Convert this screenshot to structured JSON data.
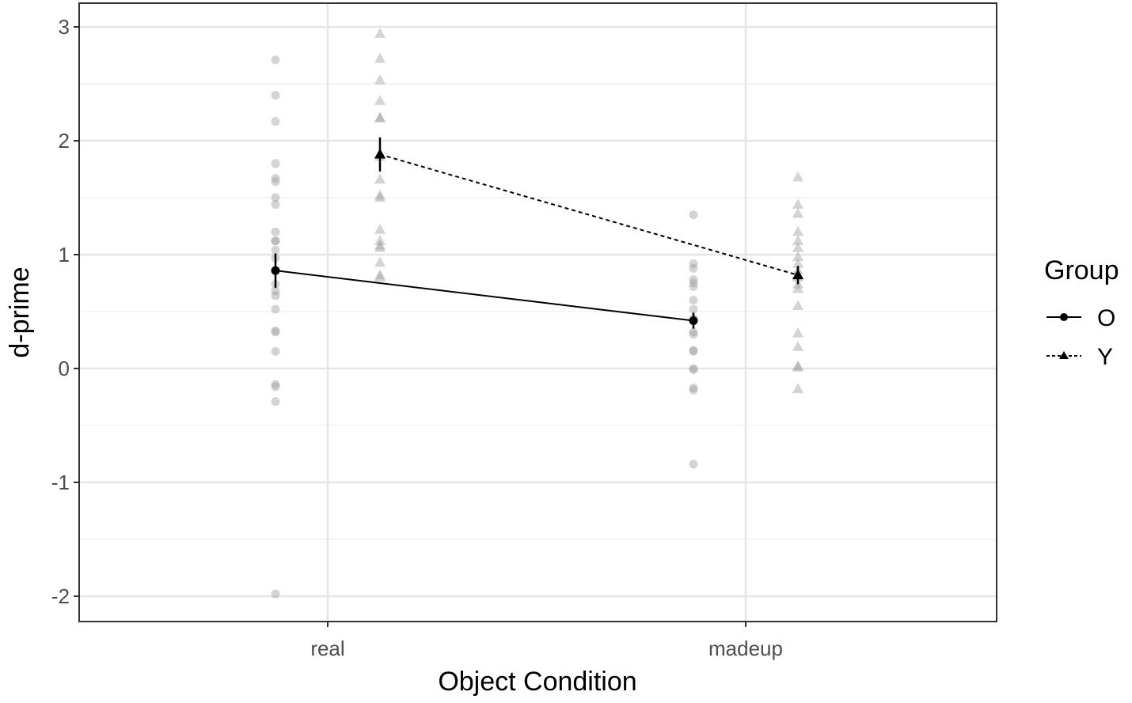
{
  "chart_data": {
    "type": "scatter",
    "xlabel": "Object Condition",
    "ylabel": "d-prime",
    "categories": [
      "real",
      "madeup"
    ],
    "y_ticks": [
      "-2",
      "-1",
      "0",
      "1",
      "2",
      "3"
    ],
    "ylim": [
      -2.2,
      3.1
    ],
    "grid": true,
    "legend": {
      "title": "Group",
      "position": "right",
      "entries": [
        "O",
        "Y"
      ]
    },
    "series": [
      {
        "name": "O",
        "marker": "circle",
        "line": "solid",
        "color": "#000000",
        "means": [
          0.86,
          0.42
        ],
        "error": [
          [
            0.71,
            1.01
          ],
          [
            0.35,
            0.49
          ]
        ],
        "points": [
          [
            2.71,
            2.4,
            2.17,
            1.8,
            1.67,
            1.64,
            1.5,
            1.44,
            1.2,
            1.12,
            1.12,
            1.04,
            0.97,
            0.86,
            0.74,
            0.68,
            0.64,
            0.52,
            0.33,
            0.32,
            0.15,
            -0.14,
            -0.16,
            -0.29,
            -1.98
          ],
          [
            1.35,
            0.92,
            0.88,
            0.78,
            0.75,
            0.72,
            0.6,
            0.52,
            0.44,
            0.32,
            0.3,
            0.16,
            0.15,
            0.0,
            -0.01,
            -0.17,
            -0.19,
            -0.84
          ]
        ]
      },
      {
        "name": "Y",
        "marker": "triangle",
        "line": "dashed",
        "color": "#000000",
        "means": [
          1.88,
          0.82
        ],
        "error": [
          [
            1.73,
            2.03
          ],
          [
            0.74,
            0.9
          ]
        ],
        "points": [
          [
            2.94,
            2.72,
            2.53,
            2.35,
            2.2,
            2.2,
            1.86,
            1.66,
            1.52,
            1.5,
            1.22,
            1.12,
            1.08,
            1.06,
            0.93,
            0.82,
            0.8
          ],
          [
            1.68,
            1.44,
            1.36,
            1.2,
            1.12,
            1.06,
            0.98,
            0.92,
            0.86,
            0.8,
            0.74,
            0.7,
            0.55,
            0.31,
            0.19,
            0.02,
            0.01,
            -0.18
          ]
        ]
      }
    ]
  }
}
